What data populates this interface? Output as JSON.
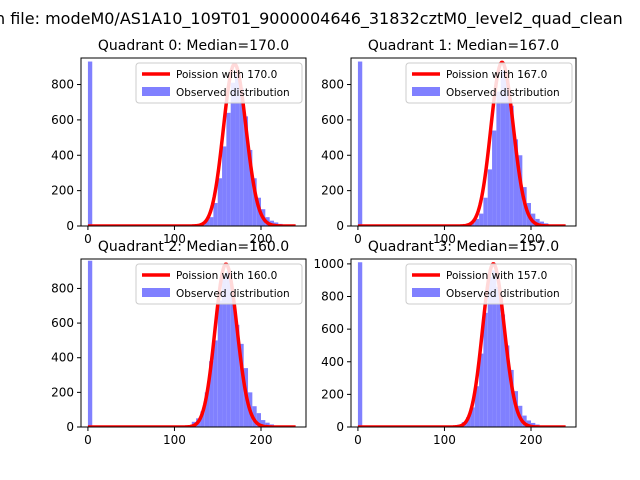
{
  "figure_title": "n file: modeM0/AS1A10_109T01_9000004646_31832cztM0_level2_quad_clean",
  "colors": {
    "poisson_line": "#ff0000",
    "histogram": "#8080ff",
    "axes": "#000000",
    "background": "#ffffff"
  },
  "legend_labels": {
    "observed": "Observed distribution"
  },
  "chart_data": [
    {
      "type": "bar",
      "title": "Quadrant 0: Median=170.0",
      "median": 170.0,
      "poisson_label": "Poission with 170.0",
      "poisson_peak": 915,
      "xlim": [
        -8,
        252
      ],
      "ylim": [
        0,
        950
      ],
      "xticks": [
        0,
        100,
        200
      ],
      "yticks": [
        0,
        200,
        400,
        600,
        800
      ],
      "legend_position": "top-right",
      "bin_width": 5,
      "bins": [
        0,
        120,
        125,
        130,
        135,
        140,
        145,
        150,
        155,
        160,
        165,
        170,
        175,
        180,
        185,
        190,
        195,
        200,
        205,
        210,
        215,
        220,
        225,
        230,
        235,
        240,
        245
      ],
      "counts": [
        930,
        5,
        10,
        15,
        35,
        50,
        130,
        270,
        450,
        640,
        810,
        860,
        780,
        620,
        430,
        270,
        160,
        95,
        50,
        30,
        20,
        12,
        8,
        5,
        3,
        2,
        1
      ]
    },
    {
      "type": "bar",
      "title": "Quadrant 1: Median=167.0",
      "median": 167.0,
      "poisson_label": "Poission with 167.0",
      "poisson_peak": 925,
      "xlim": [
        -8,
        252
      ],
      "ylim": [
        0,
        950
      ],
      "xticks": [
        0,
        100,
        200
      ],
      "yticks": [
        0,
        200,
        400,
        600,
        800
      ],
      "legend_position": "top-right",
      "bin_width": 5,
      "bins": [
        0,
        120,
        125,
        130,
        135,
        140,
        145,
        150,
        155,
        160,
        165,
        170,
        175,
        180,
        185,
        190,
        195,
        200,
        205,
        210,
        215,
        220,
        225,
        230,
        235,
        240,
        245
      ],
      "counts": [
        930,
        5,
        10,
        20,
        40,
        70,
        160,
        320,
        540,
        760,
        880,
        830,
        680,
        490,
        400,
        220,
        130,
        70,
        40,
        25,
        15,
        8,
        5,
        3,
        2,
        1,
        1
      ]
    },
    {
      "type": "bar",
      "title": "Quadrant 2: Median=160.0",
      "median": 160.0,
      "poisson_label": "Poission with 160.0",
      "poisson_peak": 940,
      "xlim": [
        -8,
        252
      ],
      "ylim": [
        0,
        970
      ],
      "xticks": [
        0,
        100,
        200
      ],
      "yticks": [
        0,
        200,
        400,
        600,
        800
      ],
      "legend_position": "top-right",
      "bin_width": 5,
      "bins": [
        0,
        110,
        115,
        120,
        125,
        130,
        135,
        140,
        145,
        150,
        155,
        160,
        165,
        170,
        175,
        180,
        185,
        190,
        195,
        200,
        205,
        210,
        215,
        220,
        225,
        230,
        235
      ],
      "counts": [
        960,
        5,
        10,
        30,
        50,
        90,
        200,
        380,
        500,
        730,
        880,
        900,
        780,
        590,
        480,
        340,
        200,
        120,
        80,
        40,
        25,
        15,
        8,
        5,
        3,
        2,
        1
      ]
    },
    {
      "type": "bar",
      "title": "Quadrant 3: Median=157.0",
      "median": 157.0,
      "poisson_label": "Poission with 157.0",
      "poisson_peak": 1000,
      "xlim": [
        -8,
        252
      ],
      "ylim": [
        0,
        1030
      ],
      "xticks": [
        0,
        100,
        200
      ],
      "yticks": [
        0,
        200,
        400,
        600,
        800,
        1000
      ],
      "legend_position": "top-right",
      "bin_width": 5,
      "bins": [
        0,
        110,
        115,
        120,
        125,
        130,
        135,
        140,
        145,
        150,
        155,
        160,
        165,
        170,
        175,
        180,
        185,
        190,
        195,
        200,
        205,
        210,
        215,
        220,
        225,
        230,
        235
      ],
      "counts": [
        1010,
        5,
        15,
        30,
        60,
        120,
        250,
        450,
        700,
        920,
        960,
        860,
        690,
        500,
        350,
        220,
        130,
        70,
        40,
        25,
        15,
        8,
        5,
        3,
        2,
        1,
        1
      ]
    }
  ]
}
